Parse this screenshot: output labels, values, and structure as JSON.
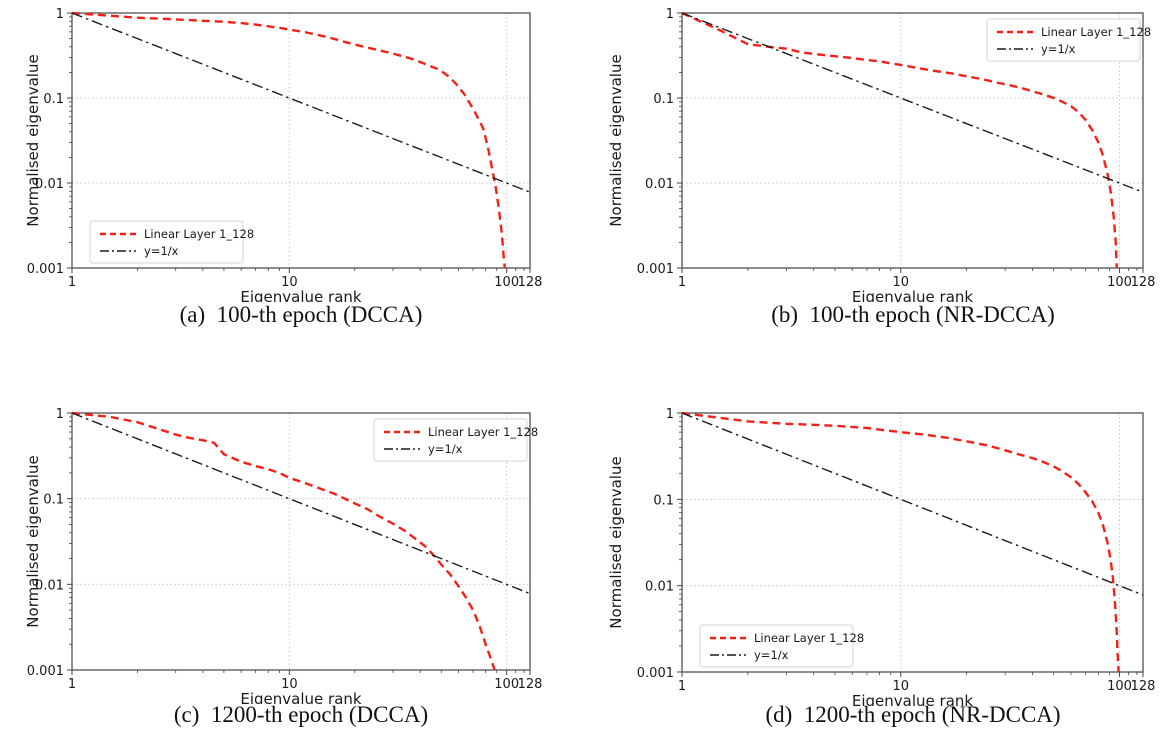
{
  "figure": {
    "background": "#ffffff",
    "accent_red": "#f32017",
    "reference_black": "#1c1c1c",
    "grid_color": "#c4c4c4"
  },
  "chart_data": [
    {
      "id": "a",
      "type": "line",
      "caption": "(a)  100-th epoch (DCCA)",
      "xlabel": "Eigenvalue rank",
      "ylabel": "Normalised eigenvalue",
      "x_scale": "log",
      "y_scale": "log",
      "xlim": [
        1,
        128
      ],
      "ylim": [
        0.001,
        1
      ],
      "x_ticks": [
        {
          "v": 1,
          "label": "1"
        },
        {
          "v": 10,
          "label": "10"
        },
        {
          "v": 100,
          "label": "100"
        },
        {
          "v": 128,
          "label": "128"
        }
      ],
      "y_ticks": [
        {
          "v": 1,
          "label": "1"
        },
        {
          "v": 0.1,
          "label": "0.1"
        },
        {
          "v": 0.01,
          "label": "0.01"
        },
        {
          "v": 0.001,
          "label": "0.001"
        }
      ],
      "grid": true,
      "legend_position": "lower-left",
      "series": [
        {
          "name": "Linear Layer 1_128",
          "color": "#f32017",
          "style": "dashed",
          "points": [
            [
              1,
              1.0
            ],
            [
              2,
              0.88
            ],
            [
              3,
              0.84
            ],
            [
              4,
              0.81
            ],
            [
              5,
              0.79
            ],
            [
              6,
              0.76
            ],
            [
              7,
              0.73
            ],
            [
              9,
              0.67
            ],
            [
              12,
              0.59
            ],
            [
              15,
              0.52
            ],
            [
              19,
              0.44
            ],
            [
              24,
              0.38
            ],
            [
              29,
              0.34
            ],
            [
              34,
              0.305
            ],
            [
              38,
              0.28
            ],
            [
              44,
              0.24
            ],
            [
              49,
              0.215
            ],
            [
              54,
              0.18
            ],
            [
              58,
              0.15
            ],
            [
              64,
              0.11
            ],
            [
              71,
              0.07
            ],
            [
              78,
              0.044
            ],
            [
              82,
              0.026
            ],
            [
              86,
              0.014
            ],
            [
              89,
              0.009
            ],
            [
              92,
              0.005
            ],
            [
              95,
              0.0025
            ],
            [
              97,
              0.0013
            ],
            [
              98,
              0.001
            ]
          ]
        },
        {
          "name": "y=1/x",
          "color": "#1c1c1c",
          "style": "dashdot",
          "points": [
            [
              1,
              1
            ],
            [
              128,
              0.0078
            ]
          ]
        }
      ]
    },
    {
      "id": "b",
      "type": "line",
      "caption": "(b)  100-th epoch (NR-DCCA)",
      "xlabel": "Eigenvalue rank",
      "ylabel": "Normalised eigenvalue",
      "x_scale": "log",
      "y_scale": "log",
      "xlim": [
        1,
        128
      ],
      "ylim": [
        0.001,
        1
      ],
      "x_ticks": [
        {
          "v": 1,
          "label": "1"
        },
        {
          "v": 10,
          "label": "10"
        },
        {
          "v": 100,
          "label": "100"
        },
        {
          "v": 128,
          "label": "128"
        }
      ],
      "y_ticks": [
        {
          "v": 1,
          "label": "1"
        },
        {
          "v": 0.1,
          "label": "0.1"
        },
        {
          "v": 0.01,
          "label": "0.01"
        },
        {
          "v": 0.001,
          "label": "0.001"
        }
      ],
      "grid": true,
      "legend_position": "upper-right",
      "series": [
        {
          "name": "Linear Layer 1_128",
          "color": "#f32017",
          "style": "dashed",
          "points": [
            [
              1,
              1.0
            ],
            [
              1.5,
              0.62
            ],
            [
              2,
              0.43
            ],
            [
              2.5,
              0.4
            ],
            [
              3,
              0.38
            ],
            [
              3.5,
              0.345
            ],
            [
              4,
              0.33
            ],
            [
              5,
              0.31
            ],
            [
              6,
              0.295
            ],
            [
              7,
              0.28
            ],
            [
              8,
              0.27
            ],
            [
              9,
              0.255
            ],
            [
              10,
              0.245
            ],
            [
              12,
              0.225
            ],
            [
              14,
              0.21
            ],
            [
              17,
              0.195
            ],
            [
              20,
              0.18
            ],
            [
              24,
              0.165
            ],
            [
              28,
              0.15
            ],
            [
              32,
              0.14
            ],
            [
              36,
              0.13
            ],
            [
              40,
              0.12
            ],
            [
              45,
              0.11
            ],
            [
              50,
              0.1
            ],
            [
              55,
              0.09
            ],
            [
              60,
              0.08
            ],
            [
              65,
              0.068
            ],
            [
              70,
              0.055
            ],
            [
              75,
              0.042
            ],
            [
              80,
              0.03
            ],
            [
              84,
              0.021
            ],
            [
              88,
              0.013
            ],
            [
              91,
              0.008
            ],
            [
              94,
              0.004
            ],
            [
              96,
              0.002
            ],
            [
              97,
              0.001
            ]
          ]
        },
        {
          "name": "y=1/x",
          "color": "#1c1c1c",
          "style": "dashdot",
          "points": [
            [
              1,
              1
            ],
            [
              128,
              0.0078
            ]
          ]
        }
      ]
    },
    {
      "id": "c",
      "type": "line",
      "caption": "(c)  1200-th epoch (DCCA)",
      "xlabel": "Eigenvalue rank",
      "ylabel": "Normalised eigenvalue",
      "x_scale": "log",
      "y_scale": "log",
      "xlim": [
        1,
        128
      ],
      "ylim": [
        0.001,
        1
      ],
      "x_ticks": [
        {
          "v": 1,
          "label": "1"
        },
        {
          "v": 10,
          "label": "10"
        },
        {
          "v": 100,
          "label": "100"
        },
        {
          "v": 128,
          "label": "128"
        }
      ],
      "y_ticks": [
        {
          "v": 1,
          "label": "1"
        },
        {
          "v": 0.1,
          "label": "0.1"
        },
        {
          "v": 0.01,
          "label": "0.01"
        },
        {
          "v": 0.001,
          "label": "0.001"
        }
      ],
      "grid": true,
      "legend_position": "upper-right",
      "series": [
        {
          "name": "Linear Layer 1_128",
          "color": "#f32017",
          "style": "dashed",
          "points": [
            [
              1,
              1.0
            ],
            [
              1.5,
              0.9
            ],
            [
              2,
              0.78
            ],
            [
              2.5,
              0.65
            ],
            [
              3,
              0.56
            ],
            [
              3.5,
              0.51
            ],
            [
              4,
              0.48
            ],
            [
              4.5,
              0.45
            ],
            [
              5,
              0.33
            ],
            [
              6,
              0.27
            ],
            [
              7,
              0.24
            ],
            [
              8,
              0.22
            ],
            [
              9,
              0.2
            ],
            [
              10,
              0.175
            ],
            [
              12,
              0.15
            ],
            [
              14,
              0.13
            ],
            [
              16,
              0.115
            ],
            [
              18,
              0.1
            ],
            [
              20,
              0.088
            ],
            [
              23,
              0.075
            ],
            [
              26,
              0.062
            ],
            [
              30,
              0.051
            ],
            [
              34,
              0.042
            ],
            [
              38,
              0.034
            ],
            [
              42,
              0.028
            ],
            [
              46,
              0.022
            ],
            [
              50,
              0.017
            ],
            [
              55,
              0.013
            ],
            [
              60,
              0.0095
            ],
            [
              65,
              0.007
            ],
            [
              70,
              0.005
            ],
            [
              75,
              0.0033
            ],
            [
              80,
              0.002
            ],
            [
              85,
              0.0013
            ],
            [
              88,
              0.001
            ]
          ]
        },
        {
          "name": "y=1/x",
          "color": "#1c1c1c",
          "style": "dashdot",
          "points": [
            [
              1,
              1
            ],
            [
              128,
              0.0078
            ]
          ]
        }
      ]
    },
    {
      "id": "d",
      "type": "line",
      "caption": "(d)  1200-th epoch (NR-DCCA)",
      "xlabel": "Eigenvalue rank",
      "ylabel": "Normalised eigenvalue",
      "x_scale": "log",
      "y_scale": "log",
      "xlim": [
        1,
        128
      ],
      "ylim": [
        0.001,
        1
      ],
      "x_ticks": [
        {
          "v": 1,
          "label": "1"
        },
        {
          "v": 10,
          "label": "10"
        },
        {
          "v": 100,
          "label": "100"
        },
        {
          "v": 128,
          "label": "128"
        }
      ],
      "y_ticks": [
        {
          "v": 1,
          "label": "1"
        },
        {
          "v": 0.1,
          "label": "0.1"
        },
        {
          "v": 0.01,
          "label": "0.01"
        },
        {
          "v": 0.001,
          "label": "0.001"
        }
      ],
      "grid": true,
      "legend_position": "lower-left",
      "series": [
        {
          "name": "Linear Layer 1_128",
          "color": "#f32017",
          "style": "dashed",
          "points": [
            [
              1,
              1.0
            ],
            [
              2,
              0.8
            ],
            [
              3,
              0.75
            ],
            [
              4,
              0.73
            ],
            [
              5,
              0.71
            ],
            [
              7,
              0.67
            ],
            [
              10,
              0.6
            ],
            [
              13,
              0.56
            ],
            [
              16,
              0.52
            ],
            [
              20,
              0.47
            ],
            [
              25,
              0.42
            ],
            [
              30,
              0.37
            ],
            [
              35,
              0.33
            ],
            [
              40,
              0.3
            ],
            [
              45,
              0.27
            ],
            [
              50,
              0.24
            ],
            [
              55,
              0.21
            ],
            [
              60,
              0.18
            ],
            [
              65,
              0.15
            ],
            [
              70,
              0.12
            ],
            [
              75,
              0.095
            ],
            [
              80,
              0.07
            ],
            [
              84,
              0.05
            ],
            [
              88,
              0.032
            ],
            [
              91,
              0.02
            ],
            [
              93,
              0.013
            ],
            [
              95,
              0.007
            ],
            [
              97,
              0.003
            ],
            [
              98,
              0.0016
            ],
            [
              99,
              0.001
            ]
          ]
        },
        {
          "name": "y=1/x",
          "color": "#1c1c1c",
          "style": "dashdot",
          "points": [
            [
              1,
              1
            ],
            [
              128,
              0.0078
            ]
          ]
        }
      ]
    }
  ]
}
